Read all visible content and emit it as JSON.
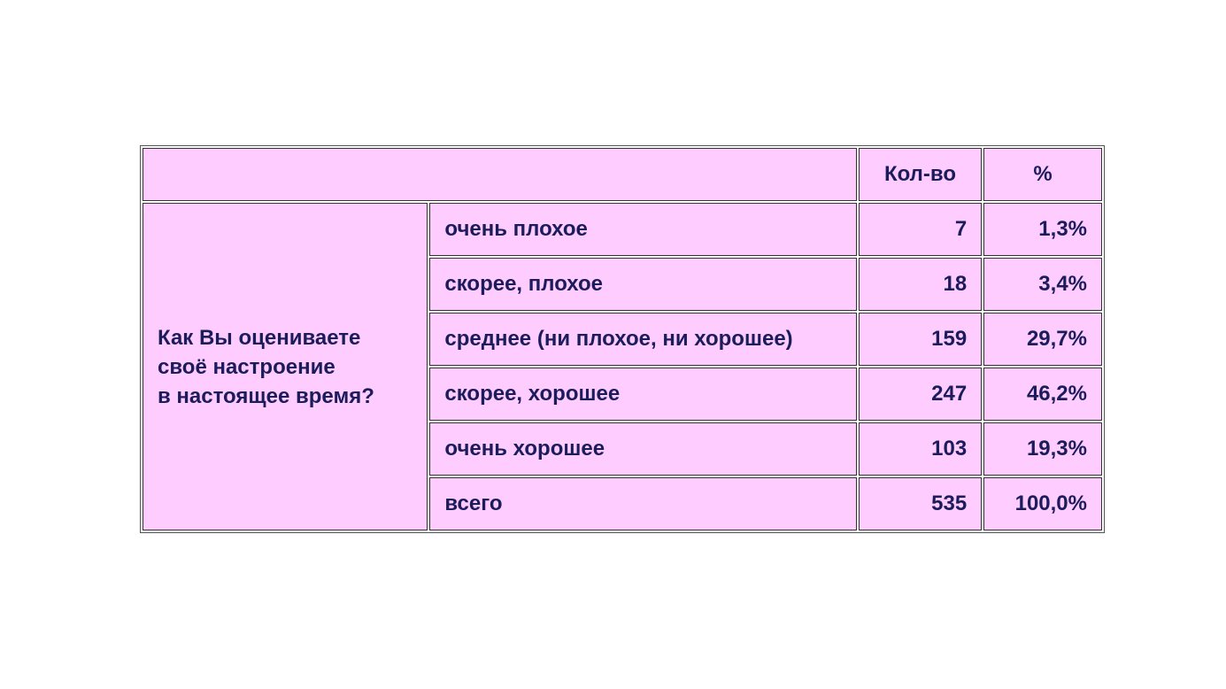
{
  "header": {
    "count": "Кол-во",
    "percent": "%"
  },
  "question": [
    "Как Вы оцениваете",
    "своё настроение",
    "в настоящее время?"
  ],
  "rows": [
    {
      "label": "очень плохое",
      "count": "7",
      "percent": "1,3%"
    },
    {
      "label": "скорее, плохое",
      "count": "18",
      "percent": "3,4%"
    },
    {
      "label": "среднее (ни плохое, ни хорошее)",
      "count": "159",
      "percent": "29,7%"
    },
    {
      "label": "скорее, хорошее",
      "count": "247",
      "percent": "46,2%"
    },
    {
      "label": "очень хорошее",
      "count": "103",
      "percent": "19,3%"
    },
    {
      "label": "всего",
      "count": "535",
      "percent": "100,0%"
    }
  ],
  "colors": {
    "cell_background": "#ffccff",
    "text": "#1c1c5c"
  }
}
